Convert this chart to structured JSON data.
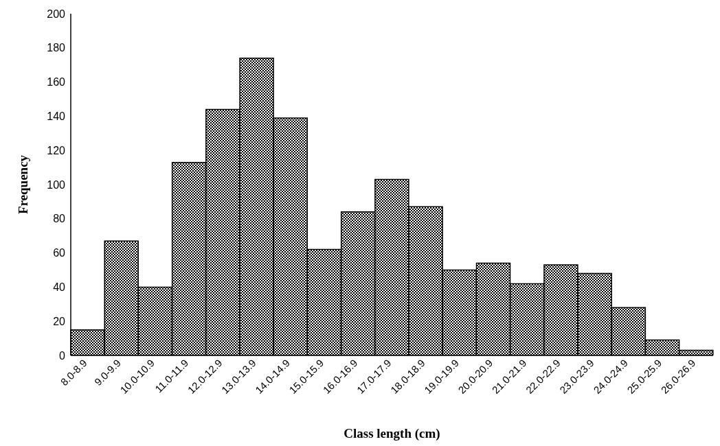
{
  "chart_data": {
    "type": "bar",
    "xlabel": "Class length (cm)",
    "ylabel": "Frequency",
    "categories": [
      "8.0-8.9",
      "9.0-9.9",
      "10.0-10.9",
      "11.0-11.9",
      "12.0-12.9",
      "13.0-13.9",
      "14.0-14.9",
      "15.0-15.9",
      "16.0-16.9",
      "17.0-17.9",
      "18.0-18.9",
      "19.0-19.9",
      "20.0-20.9",
      "21.0-21.9",
      "22.0-22.9",
      "23.0-23.9",
      "24.0-24.9",
      "25.0-25.9",
      "26.0-26.9"
    ],
    "values": [
      15,
      67,
      40,
      113,
      144,
      174,
      139,
      62,
      84,
      103,
      87,
      50,
      54,
      42,
      53,
      48,
      28,
      9,
      3
    ],
    "color": "#000000",
    "ylim": [
      0,
      200
    ],
    "yticks": [
      0,
      20,
      40,
      60,
      80,
      100,
      120,
      140,
      160,
      180,
      200
    ],
    "grid": false,
    "legend": false
  }
}
